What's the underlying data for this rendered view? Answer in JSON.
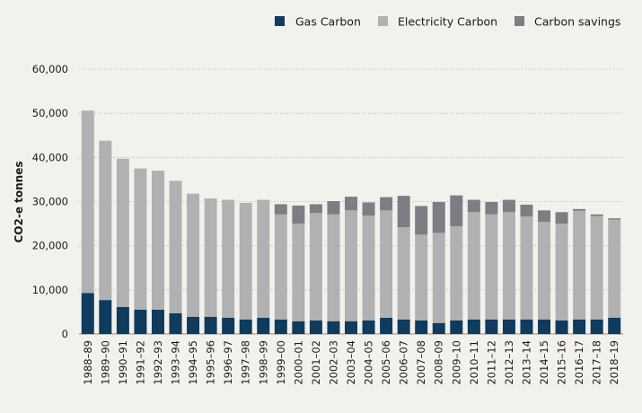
{
  "chart_data": {
    "type": "bar",
    "stacked": true,
    "title": "",
    "xlabel": "",
    "ylabel": "CO2-e tonnes",
    "ylim": [
      0,
      60000
    ],
    "yticks": [
      0,
      10000,
      20000,
      30000,
      40000,
      50000,
      60000
    ],
    "ytick_labels": [
      "0",
      "10,000",
      "20,000",
      "30,000",
      "40,000",
      "50,000",
      "60,000"
    ],
    "grid": true,
    "legend_position": "top-right",
    "categories": [
      "1988–89",
      "1989–90",
      "1990–91",
      "1991–92",
      "1992–93",
      "1993–94",
      "1994–95",
      "1995–96",
      "1996–97",
      "1997–98",
      "1998–99",
      "1999–00",
      "2000–01",
      "2001–02",
      "2002–03",
      "2003–04",
      "2004–05",
      "2005–06",
      "2006–07",
      "2007–08",
      "2008–09",
      "2009–10",
      "2010–11",
      "2011–12",
      "2012–13",
      "2013–14",
      "2014–15",
      "2015–16",
      "2016–17",
      "2017–18",
      "2018–19"
    ],
    "series": [
      {
        "name": "Gas Carbon",
        "color": "#0e3b5e",
        "values": [
          9300,
          7700,
          6100,
          5500,
          5500,
          4700,
          3900,
          3900,
          3700,
          3300,
          3700,
          3300,
          2900,
          3100,
          2900,
          2900,
          3100,
          3700,
          3300,
          3100,
          2500,
          3100,
          3300,
          3300,
          3300,
          3300,
          3300,
          3100,
          3300,
          3300,
          3700
        ]
      },
      {
        "name": "Electricity Carbon",
        "color": "#b1b1b1",
        "values": [
          41300,
          36100,
          33600,
          32000,
          31500,
          30000,
          27900,
          26800,
          26700,
          26400,
          26700,
          23800,
          22100,
          24300,
          24200,
          25100,
          23700,
          24300,
          20900,
          19400,
          20400,
          21300,
          24300,
          23800,
          24300,
          23300,
          22100,
          21900,
          24600,
          23400,
          22200
        ]
      },
      {
        "name": "Carbon savings",
        "color": "#7b7e82",
        "values": [
          0,
          0,
          0,
          0,
          0,
          0,
          0,
          0,
          0,
          0,
          0,
          2300,
          4100,
          2000,
          3000,
          3100,
          3000,
          3000,
          7100,
          6500,
          7000,
          7000,
          2800,
          2800,
          2800,
          2700,
          2600,
          2600,
          400,
          400,
          300
        ]
      }
    ]
  }
}
